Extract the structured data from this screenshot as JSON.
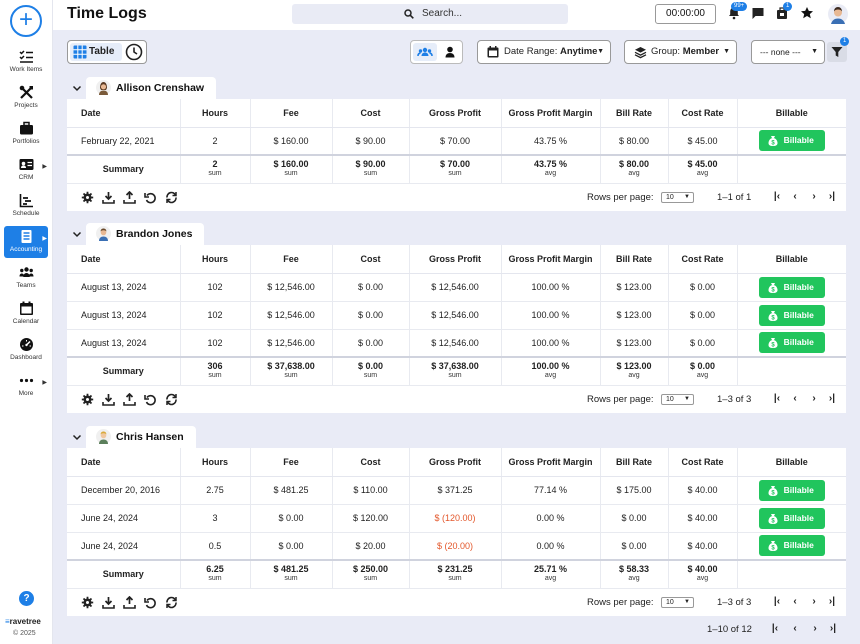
{
  "app": {
    "title": "Time Logs",
    "brand": "ravetree",
    "copyright": "© 2025"
  },
  "nav": [
    {
      "label": "Work Items",
      "icon": "checklist-icon"
    },
    {
      "label": "Projects",
      "icon": "tools-icon"
    },
    {
      "label": "Portfolios",
      "icon": "briefcase-icon"
    },
    {
      "label": "CRM",
      "icon": "contact-card-icon",
      "arrow": true
    },
    {
      "label": "Schedule",
      "icon": "schedule-chart-icon"
    },
    {
      "label": "Accounting",
      "icon": "accounting-icon",
      "arrow": true,
      "active": true
    },
    {
      "label": "Teams",
      "icon": "teams-icon"
    },
    {
      "label": "Calendar",
      "icon": "calendar-icon"
    },
    {
      "label": "Dashboard",
      "icon": "dashboard-icon"
    },
    {
      "label": "More",
      "icon": "more-icon",
      "arrow": true
    }
  ],
  "header": {
    "search_placeholder": "Search...",
    "timer": "00:00:00",
    "notifications_badge": "99+",
    "tasks_badge": "1"
  },
  "toolbar": {
    "table_label": "Table",
    "date_range_label": "Date Range:",
    "date_range_value": "Anytime",
    "group_label": "Group:",
    "group_value": "Member",
    "none_select": "--- none ---",
    "filter_badge": "1"
  },
  "columns": [
    "Date",
    "Hours",
    "Fee",
    "Cost",
    "Gross Profit",
    "Gross Profit Margin",
    "Bill Rate",
    "Cost Rate",
    "Billable"
  ],
  "billable_label": "Billable",
  "summary_label": "Summary",
  "rows_per_page_label": "Rows per page:",
  "rows_per_page": "10",
  "groups": [
    {
      "name": "Allison Crenshaw",
      "rows": [
        [
          "February 22, 2021",
          "2",
          "$ 160.00",
          "$ 90.00",
          "$ 70.00",
          "43.75 %",
          "$ 80.00",
          "$ 45.00"
        ]
      ],
      "summary": [
        [
          "2",
          "sum"
        ],
        [
          "$ 160.00",
          "sum"
        ],
        [
          "$ 90.00",
          "sum"
        ],
        [
          "$ 70.00",
          "sum"
        ],
        [
          "43.75 %",
          "avg"
        ],
        [
          "$ 80.00",
          "avg"
        ],
        [
          "$ 45.00",
          "avg"
        ]
      ],
      "range": "1–1 of 1"
    },
    {
      "name": "Brandon Jones",
      "rows": [
        [
          "August 13, 2024",
          "102",
          "$ 12,546.00",
          "$ 0.00",
          "$ 12,546.00",
          "100.00 %",
          "$ 123.00",
          "$ 0.00"
        ],
        [
          "August 13, 2024",
          "102",
          "$ 12,546.00",
          "$ 0.00",
          "$ 12,546.00",
          "100.00 %",
          "$ 123.00",
          "$ 0.00"
        ],
        [
          "August 13, 2024",
          "102",
          "$ 12,546.00",
          "$ 0.00",
          "$ 12,546.00",
          "100.00 %",
          "$ 123.00",
          "$ 0.00"
        ]
      ],
      "summary": [
        [
          "306",
          "sum"
        ],
        [
          "$ 37,638.00",
          "sum"
        ],
        [
          "$ 0.00",
          "sum"
        ],
        [
          "$ 37,638.00",
          "sum"
        ],
        [
          "100.00 %",
          "avg"
        ],
        [
          "$ 123.00",
          "avg"
        ],
        [
          "$ 0.00",
          "avg"
        ]
      ],
      "range": "1–3 of 3"
    },
    {
      "name": "Chris Hansen",
      "rows": [
        [
          "December 20, 2016",
          "2.75",
          "$ 481.25",
          "$ 110.00",
          "$ 371.25",
          "77.14 %",
          "$ 175.00",
          "$ 40.00"
        ],
        [
          "June 24, 2024",
          "3",
          "$ 0.00",
          "$ 120.00",
          "$ (120.00)",
          "0.00 %",
          "$ 0.00",
          "$ 40.00"
        ],
        [
          "June 24, 2024",
          "0.5",
          "$ 0.00",
          "$ 20.00",
          "$ (20.00)",
          "0.00 %",
          "$ 0.00",
          "$ 40.00"
        ]
      ],
      "summary": [
        [
          "6.25",
          "sum"
        ],
        [
          "$ 481.25",
          "sum"
        ],
        [
          "$ 250.00",
          "sum"
        ],
        [
          "$ 231.25",
          "sum"
        ],
        [
          "25.71 %",
          "avg"
        ],
        [
          "$ 58.33",
          "avg"
        ],
        [
          "$ 40.00",
          "avg"
        ]
      ],
      "range": "1–3 of 3"
    }
  ],
  "overall_range": "1–10 of 12",
  "colors": {
    "accent": "#1e7fe6",
    "billable": "#21c55d",
    "negative": "#e3572b",
    "background": "#e9ebf6"
  }
}
